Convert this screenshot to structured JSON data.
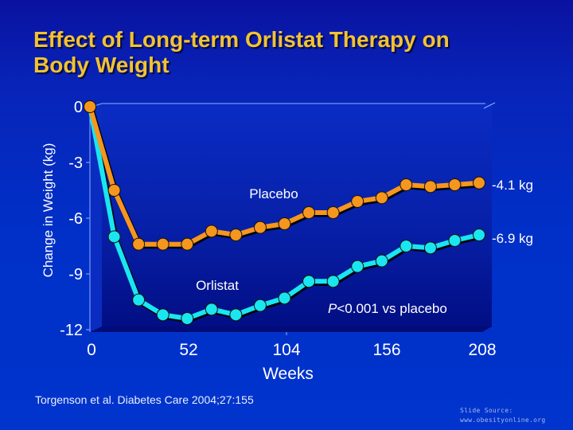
{
  "slide": {
    "title_lines": [
      "Effect of Long-term Orlistat Therapy on",
      "Body Weight"
    ],
    "citation": "Torgenson et al. Diabetes Care 2004;27:155",
    "source_line1": "Slide Source:",
    "source_line2": "www.obesityonline.org"
  },
  "chart_data": {
    "type": "line",
    "title": "Effect of Long-term Orlistat Therapy on Body Weight",
    "xlabel": "Weeks",
    "ylabel": "Change in Weight (kg)",
    "xlim": [
      0,
      208
    ],
    "ylim": [
      -12,
      0
    ],
    "x_ticks": [
      0,
      52,
      104,
      156,
      208
    ],
    "x_tick_labels": [
      "0",
      "52",
      "104",
      "156",
      "208"
    ],
    "y_ticks": [
      0,
      -3,
      -6,
      -9,
      -12
    ],
    "y_tick_labels": [
      "0",
      "-3",
      "-6",
      "-9",
      "-12"
    ],
    "grid": false,
    "x": [
      0,
      13,
      26,
      39,
      52,
      65,
      78,
      91,
      104,
      117,
      130,
      143,
      156,
      169,
      182,
      195,
      208
    ],
    "series": [
      {
        "name": "Placebo",
        "color": "#f5961e",
        "values": [
          0,
          -4.5,
          -7.4,
          -7.4,
          -7.4,
          -6.7,
          -6.9,
          -6.5,
          -6.3,
          -5.7,
          -5.7,
          -5.1,
          -4.9,
          -4.2,
          -4.3,
          -4.2,
          -4.1
        ],
        "end_label": "-4.1 kg"
      },
      {
        "name": "Orlistat",
        "color": "#19e6f0",
        "values": [
          0,
          -7.0,
          -10.4,
          -11.2,
          -11.4,
          -10.9,
          -11.2,
          -10.7,
          -10.3,
          -9.4,
          -9.4,
          -8.6,
          -8.3,
          -7.5,
          -7.6,
          -7.2,
          -6.9
        ],
        "end_label": "-6.9 kg"
      }
    ],
    "annotations": [
      {
        "text": "Placebo",
        "series": "Placebo"
      },
      {
        "text": "Orlistat",
        "series": "Orlistat"
      },
      {
        "text_italic": "P",
        "text": "<0.001 vs placebo"
      }
    ]
  }
}
